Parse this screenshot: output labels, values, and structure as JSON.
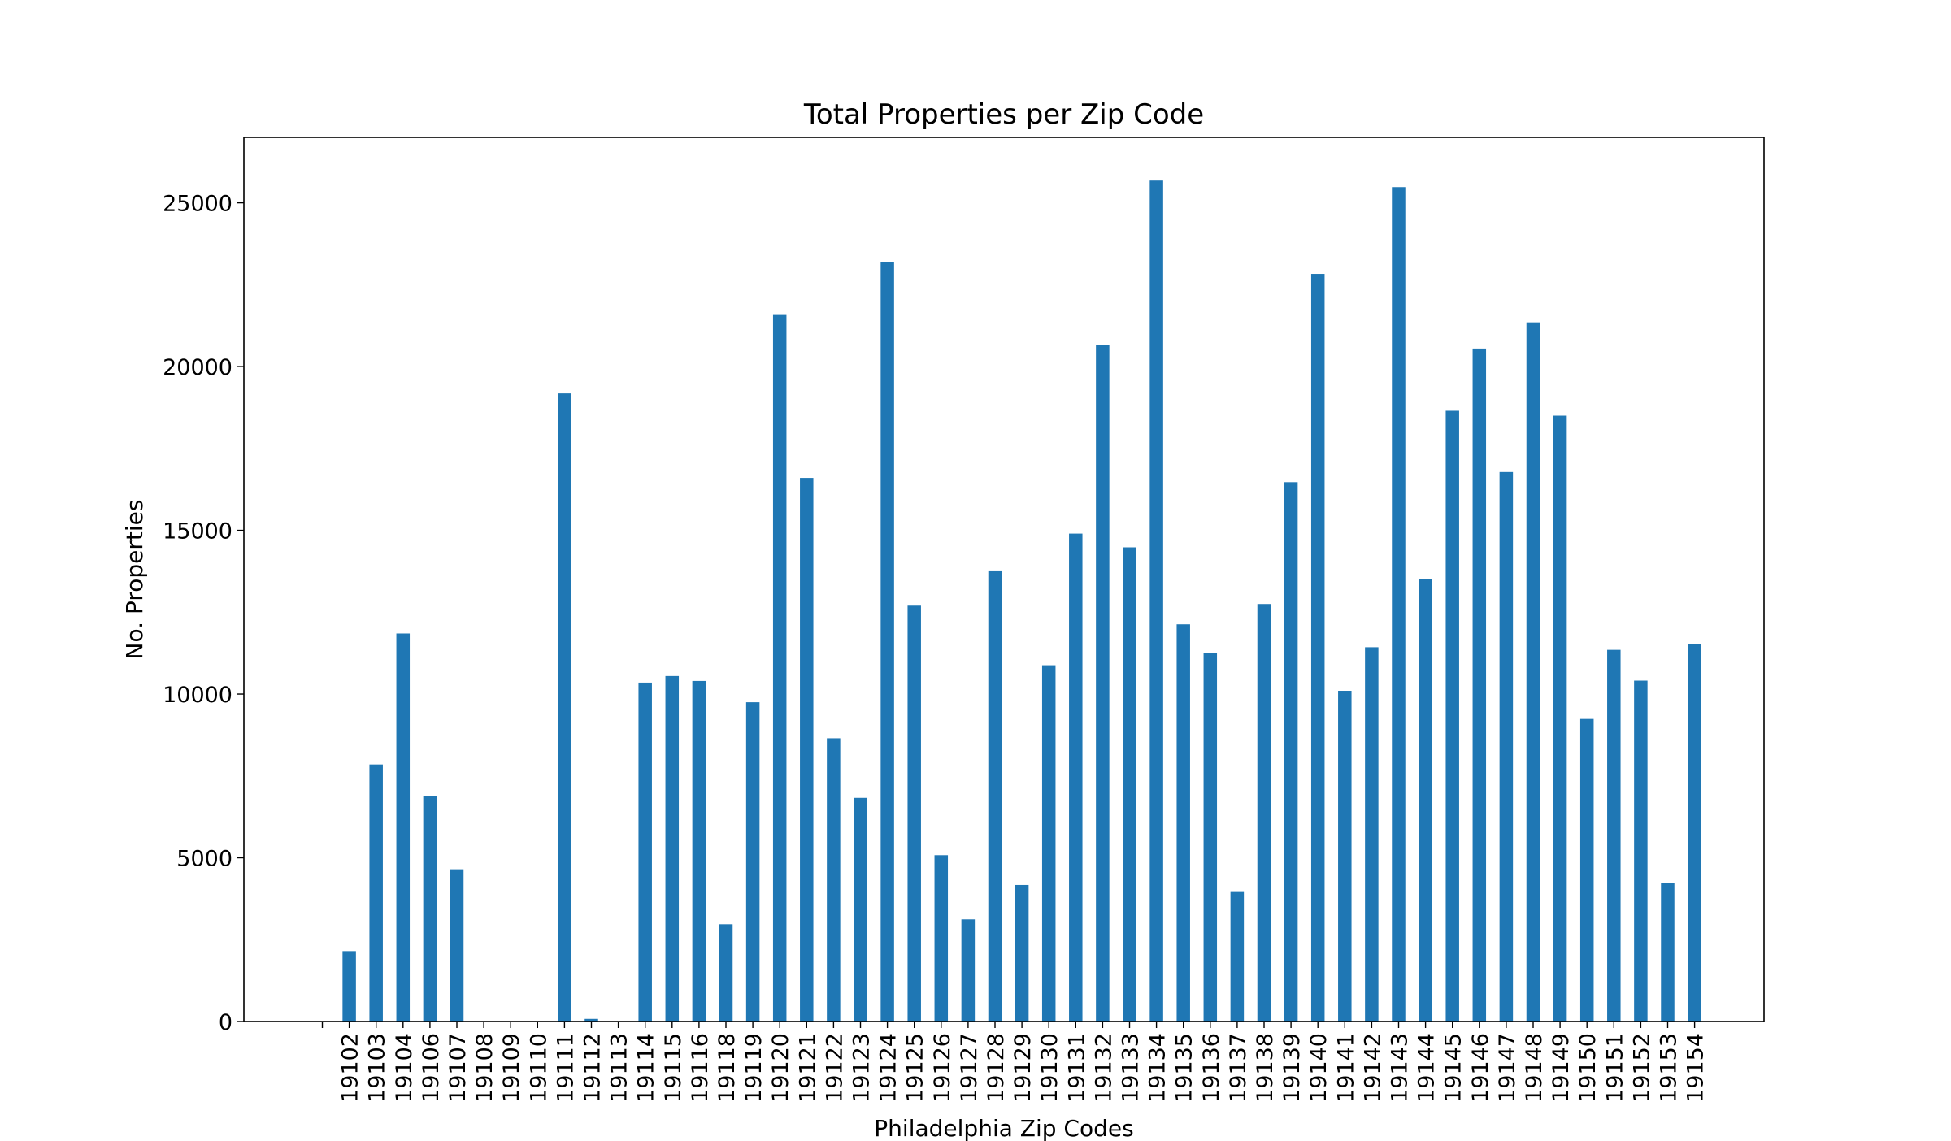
{
  "chart_data": {
    "type": "bar",
    "title": "Total Properties per Zip Code",
    "xlabel": "Philadelphia Zip Codes",
    "ylabel": "No. Properties",
    "ylim": [
      0,
      27000
    ],
    "yticks": [
      "0",
      "5000",
      "10000",
      "15000",
      "20000",
      "25000"
    ],
    "grid": false,
    "bar_color": "#1f77b4",
    "categories": [
      "",
      "19102",
      "19103",
      "19104",
      "19106",
      "19107",
      "19108",
      "19109",
      "19110",
      "19111",
      "19112",
      "19113",
      "19114",
      "19115",
      "19116",
      "19118",
      "19119",
      "19120",
      "19121",
      "19122",
      "19123",
      "19124",
      "19125",
      "19126",
      "19127",
      "19128",
      "19129",
      "19130",
      "19131",
      "19132",
      "19133",
      "19134",
      "19135",
      "19136",
      "19137",
      "19138",
      "19139",
      "19140",
      "19141",
      "19142",
      "19143",
      "19144",
      "19145",
      "19146",
      "19147",
      "19148",
      "19149",
      "19150",
      "19151",
      "19152",
      "19153",
      "19154"
    ],
    "values": [
      0,
      2150,
      7850,
      11850,
      6880,
      4650,
      10,
      5,
      5,
      19180,
      80,
      10,
      10350,
      10550,
      10400,
      2970,
      9750,
      21600,
      16600,
      8650,
      6830,
      23180,
      12700,
      5080,
      3120,
      13750,
      4170,
      10880,
      14900,
      20650,
      14480,
      25680,
      12130,
      11250,
      3980,
      12750,
      16470,
      22830,
      10100,
      11430,
      25480,
      13500,
      18650,
      20550,
      16780,
      21350,
      18500,
      9240,
      11350,
      10410,
      4220,
      11530
    ]
  }
}
